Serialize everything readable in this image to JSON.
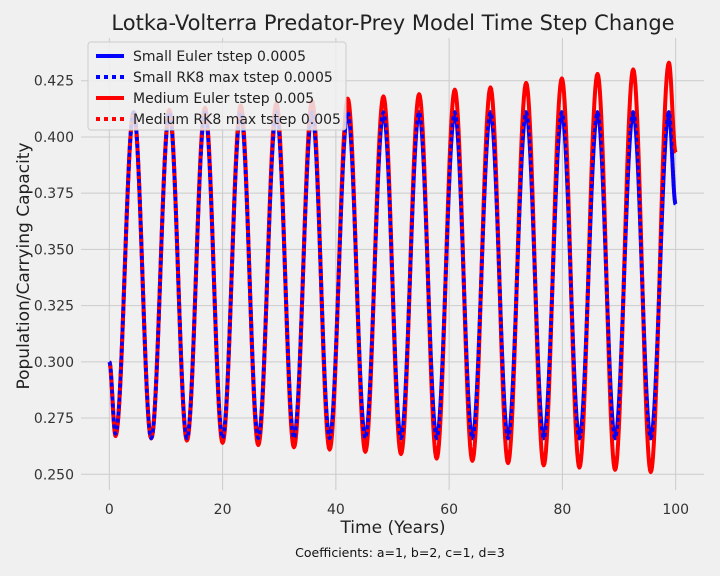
{
  "chart_data": {
    "type": "line",
    "title": "Lotka-Volterra Predator-Prey Model Time Step Change",
    "xlabel": "Time (Years)",
    "ylabel": "Population/Carrying Capacity",
    "caption": "Coefficients: a=1, b=2, c=1, d=3",
    "xlim": [
      -5,
      105
    ],
    "ylim": [
      0.243,
      0.444
    ],
    "xticks": [
      0,
      20,
      40,
      60,
      80,
      100
    ],
    "yticks": [
      0.25,
      0.275,
      0.3,
      0.325,
      0.35,
      0.375,
      0.4,
      0.425
    ],
    "xtick_labels": [
      "0",
      "20",
      "40",
      "60",
      "80",
      "100"
    ],
    "ytick_labels": [
      "0.250",
      "0.275",
      "0.300",
      "0.325",
      "0.350",
      "0.375",
      "0.400",
      "0.425"
    ],
    "grid": true,
    "legend_position": "top-left",
    "series": [
      {
        "name": "Small Euler tstep 0.0005",
        "color": "#0000ff",
        "style": "solid",
        "x": [
          0,
          1.1,
          4.3,
          7.4,
          10.6,
          13.7,
          16.9,
          20.0,
          23.2,
          26.3,
          29.5,
          32.6,
          35.8,
          38.9,
          42.1,
          45.2,
          48.4,
          51.5,
          54.7,
          57.8,
          61.0,
          64.1,
          67.3,
          70.4,
          73.6,
          76.7,
          79.9,
          83.0,
          86.2,
          89.3,
          92.5,
          95.6,
          98.8,
          100
        ],
        "y": [
          0.3,
          0.268,
          0.411,
          0.266,
          0.411,
          0.266,
          0.411,
          0.266,
          0.411,
          0.266,
          0.411,
          0.266,
          0.411,
          0.266,
          0.411,
          0.266,
          0.411,
          0.266,
          0.411,
          0.266,
          0.411,
          0.266,
          0.411,
          0.266,
          0.411,
          0.266,
          0.411,
          0.266,
          0.411,
          0.266,
          0.411,
          0.266,
          0.411,
          0.37
        ]
      },
      {
        "name": "Small RK8 max tstep 0.0005",
        "color": "#0000ff",
        "style": "dotted",
        "x": [
          0,
          1.1,
          4.3,
          7.4,
          10.6,
          13.7,
          16.9,
          20.0,
          23.2,
          26.3,
          29.5,
          32.6,
          35.8,
          38.9,
          42.1,
          45.2,
          48.4,
          51.5,
          54.7,
          57.8,
          61.0,
          64.1,
          67.3,
          70.4,
          73.6,
          76.7,
          79.9,
          83.0,
          86.2,
          89.3,
          92.5,
          95.6,
          98.8,
          100
        ],
        "y": [
          0.3,
          0.268,
          0.411,
          0.266,
          0.411,
          0.266,
          0.411,
          0.266,
          0.411,
          0.266,
          0.411,
          0.266,
          0.411,
          0.266,
          0.411,
          0.266,
          0.411,
          0.266,
          0.411,
          0.266,
          0.411,
          0.266,
          0.411,
          0.266,
          0.411,
          0.266,
          0.411,
          0.266,
          0.411,
          0.266,
          0.411,
          0.266,
          0.411,
          0.37
        ]
      },
      {
        "name": "Medium Euler tstep 0.005",
        "color": "#ff0000",
        "style": "solid",
        "x": [
          0,
          1.1,
          4.3,
          7.4,
          10.6,
          13.7,
          16.9,
          20.0,
          23.2,
          26.3,
          29.5,
          32.6,
          35.8,
          38.9,
          42.1,
          45.2,
          48.4,
          51.5,
          54.7,
          57.8,
          61.0,
          64.1,
          67.3,
          70.4,
          73.6,
          76.7,
          79.9,
          83.0,
          86.2,
          89.3,
          92.5,
          95.6,
          98.8,
          100
        ],
        "y": [
          0.3,
          0.267,
          0.411,
          0.266,
          0.412,
          0.265,
          0.413,
          0.264,
          0.414,
          0.263,
          0.415,
          0.262,
          0.416,
          0.261,
          0.417,
          0.26,
          0.418,
          0.259,
          0.419,
          0.257,
          0.421,
          0.256,
          0.422,
          0.255,
          0.424,
          0.254,
          0.426,
          0.253,
          0.428,
          0.252,
          0.43,
          0.251,
          0.433,
          0.393
        ]
      },
      {
        "name": "Medium RK8 max tstep 0.005",
        "color": "#ff0000",
        "style": "dotted",
        "x": [
          0,
          1.1,
          4.3,
          7.4,
          10.6,
          13.7,
          16.9,
          20.0,
          23.2,
          26.3,
          29.5,
          32.6,
          35.8,
          38.9,
          42.1,
          45.2,
          48.4,
          51.5,
          54.7,
          57.8,
          61.0,
          64.1,
          67.3,
          70.4,
          73.6,
          76.7,
          79.9,
          83.0,
          86.2,
          89.3,
          92.5,
          95.6,
          98.8,
          100
        ],
        "y": [
          0.3,
          0.268,
          0.411,
          0.266,
          0.411,
          0.266,
          0.411,
          0.266,
          0.411,
          0.266,
          0.411,
          0.266,
          0.411,
          0.266,
          0.411,
          0.266,
          0.411,
          0.266,
          0.411,
          0.266,
          0.411,
          0.266,
          0.411,
          0.266,
          0.411,
          0.266,
          0.411,
          0.266,
          0.411,
          0.266,
          0.411,
          0.266,
          0.411,
          0.37
        ]
      }
    ]
  }
}
